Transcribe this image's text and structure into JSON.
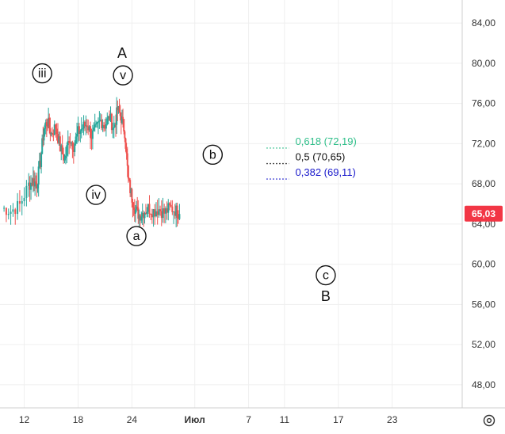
{
  "chart_data": {
    "type": "candlestick",
    "price_axis": {
      "ticks": [
        "84,00",
        "80,00",
        "76,00",
        "72,00",
        "68,00",
        "64,00",
        "60,00",
        "56,00",
        "52,00",
        "48,00"
      ],
      "tick_values": [
        84,
        80,
        76,
        72,
        68,
        64,
        60,
        56,
        52,
        48
      ],
      "ylim": [
        45.7,
        86.3
      ]
    },
    "time_axis": {
      "ticks": [
        "12",
        "18",
        "24",
        "Июл",
        "7",
        "11",
        "17",
        "23"
      ],
      "tick_days": [
        12,
        18,
        24,
        31,
        37,
        41,
        47,
        53
      ],
      "xlim": [
        9.3,
        60.8
      ],
      "bold_tick": "Июл"
    },
    "current_price": {
      "label": "65,03",
      "value": 65.03,
      "color": "#f23645"
    },
    "candle_colors": {
      "up": "#26a69a",
      "down": "#ef5350"
    },
    "close_series": [
      {
        "day": 9.5,
        "close": 65.6
      },
      {
        "day": 10.5,
        "close": 65.3
      },
      {
        "day": 11.5,
        "close": 65.9
      },
      {
        "day": 12.5,
        "close": 67.9
      },
      {
        "day": 13.0,
        "close": 68.3
      },
      {
        "day": 13.4,
        "close": 68.0
      },
      {
        "day": 13.8,
        "close": 70.2
      },
      {
        "day": 14.2,
        "close": 73.6
      },
      {
        "day": 14.6,
        "close": 74.2
      },
      {
        "day": 15.0,
        "close": 73.0
      },
      {
        "day": 15.5,
        "close": 73.7
      },
      {
        "day": 16.0,
        "close": 71.6
      },
      {
        "day": 16.5,
        "close": 70.4
      },
      {
        "day": 17.0,
        "close": 72.6
      },
      {
        "day": 17.5,
        "close": 71.8
      },
      {
        "day": 18.0,
        "close": 73.1
      },
      {
        "day": 18.5,
        "close": 73.6
      },
      {
        "day": 19.0,
        "close": 74.0
      },
      {
        "day": 19.5,
        "close": 72.8
      },
      {
        "day": 20.0,
        "close": 73.4
      },
      {
        "day": 20.5,
        "close": 74.3
      },
      {
        "day": 21.0,
        "close": 73.9
      },
      {
        "day": 21.5,
        "close": 74.6
      },
      {
        "day": 22.0,
        "close": 73.5
      },
      {
        "day": 22.4,
        "close": 75.4
      },
      {
        "day": 22.8,
        "close": 74.6
      },
      {
        "day": 23.2,
        "close": 73.2
      },
      {
        "day": 23.6,
        "close": 68.3
      },
      {
        "day": 24.0,
        "close": 66.6
      },
      {
        "day": 24.4,
        "close": 65.4
      },
      {
        "day": 24.8,
        "close": 64.9
      },
      {
        "day": 25.3,
        "close": 65.2
      },
      {
        "day": 25.8,
        "close": 65.6
      },
      {
        "day": 26.4,
        "close": 65.3
      },
      {
        "day": 27.0,
        "close": 65.5
      },
      {
        "day": 27.6,
        "close": 65.1
      },
      {
        "day": 28.2,
        "close": 65.6
      },
      {
        "day": 28.8,
        "close": 65.4
      },
      {
        "day": 29.3,
        "close": 65.0
      }
    ],
    "wave_labels": [
      {
        "text": "iii",
        "day": 14.0,
        "price": 79.0,
        "circled": true
      },
      {
        "text": "v",
        "day": 23.0,
        "price": 78.8,
        "circled": true
      },
      {
        "text": "A",
        "day": 22.9,
        "price": 81.0,
        "circled": false
      },
      {
        "text": "iv",
        "day": 20.0,
        "price": 66.9,
        "circled": true
      },
      {
        "text": "a",
        "day": 24.5,
        "price": 62.8,
        "circled": true
      },
      {
        "text": "b",
        "day": 33.0,
        "price": 70.9,
        "circled": true
      },
      {
        "text": "c",
        "day": 45.6,
        "price": 58.9,
        "circled": true
      },
      {
        "text": "B",
        "day": 45.6,
        "price": 56.8,
        "circled": false
      }
    ],
    "fib_levels": [
      {
        "label": "0,618 (72,19)",
        "value": 72.19,
        "color": "#2fbf8a"
      },
      {
        "label": "0,5 (70,65)",
        "value": 70.65,
        "color": "#111111"
      },
      {
        "label": "0,382 (69,11)",
        "value": 69.11,
        "color": "#1a1acc"
      }
    ],
    "fib_day_range": [
      39.0,
      41.5
    ],
    "grid": true
  },
  "toolbar": {
    "settings_icon": "settings-gear-icon"
  }
}
